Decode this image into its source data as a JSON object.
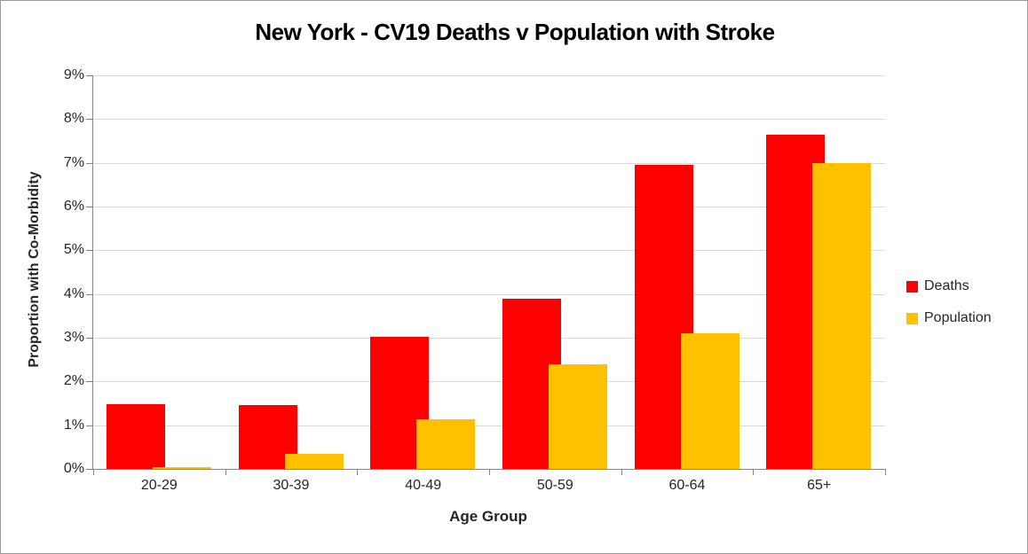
{
  "chart_data": {
    "type": "bar",
    "title": "New York - CV19 Deaths v Population with Stroke",
    "xlabel": "Age Group",
    "ylabel": "Proportion with Co-Morbidity",
    "categories": [
      "20-29",
      "30-39",
      "40-49",
      "50-59",
      "60-64",
      "65+"
    ],
    "series": [
      {
        "name": "Deaths",
        "color": "#FF0000",
        "values": [
          1.47,
          1.45,
          3.02,
          3.9,
          6.95,
          7.65
        ]
      },
      {
        "name": "Population",
        "color": "#FFC000",
        "values": [
          0.05,
          0.35,
          1.13,
          2.39,
          3.1,
          7.0
        ]
      }
    ],
    "ylim": [
      0,
      9
    ],
    "y_tick_step": 1,
    "y_tick_labels": [
      "0%",
      "1%",
      "2%",
      "3%",
      "4%",
      "5%",
      "6%",
      "7%",
      "8%",
      "9%"
    ],
    "grid": "horizontal",
    "gridline_color": "#D9D9D9",
    "axis_color": "#868686",
    "legend_position": "right",
    "legend_entries": [
      "Deaths",
      "Population"
    ]
  }
}
